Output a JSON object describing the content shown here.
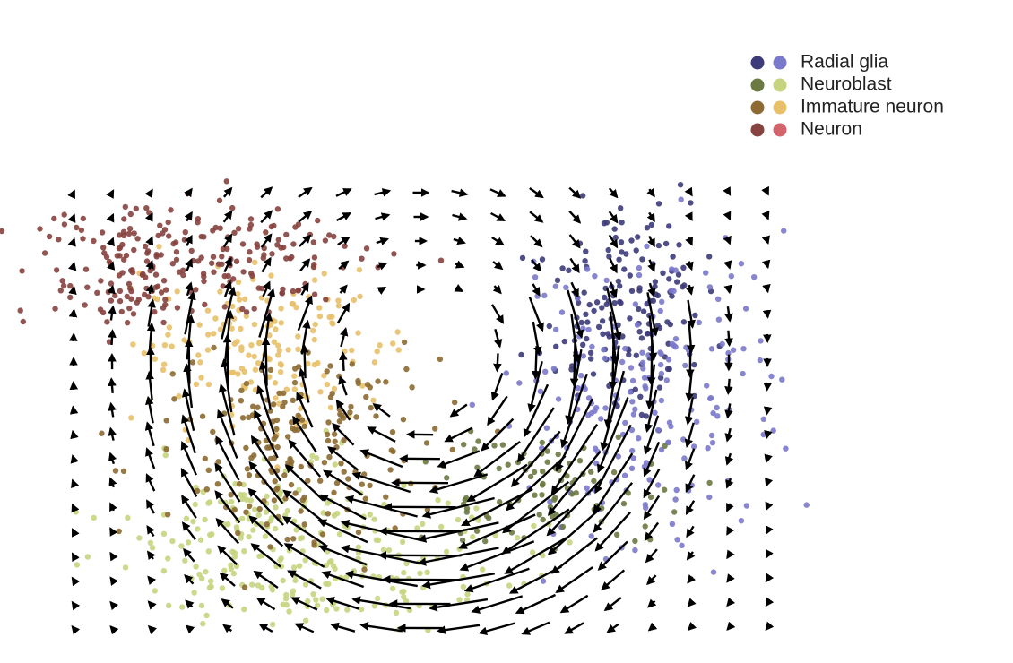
{
  "chart_data": {
    "type": "scatter",
    "series": [
      {
        "name": "Radial glia",
        "colors": [
          "#3d3b7a",
          "#7b79cb"
        ]
      },
      {
        "name": "Neuroblast",
        "colors": [
          "#6b7a42",
          "#c6d47f"
        ]
      },
      {
        "name": "Immature neuron",
        "colors": [
          "#8c6a32",
          "#e8c06a"
        ]
      },
      {
        "name": "Neuron",
        "colors": [
          "#86433f",
          "#d4636c"
        ]
      }
    ]
  }
}
